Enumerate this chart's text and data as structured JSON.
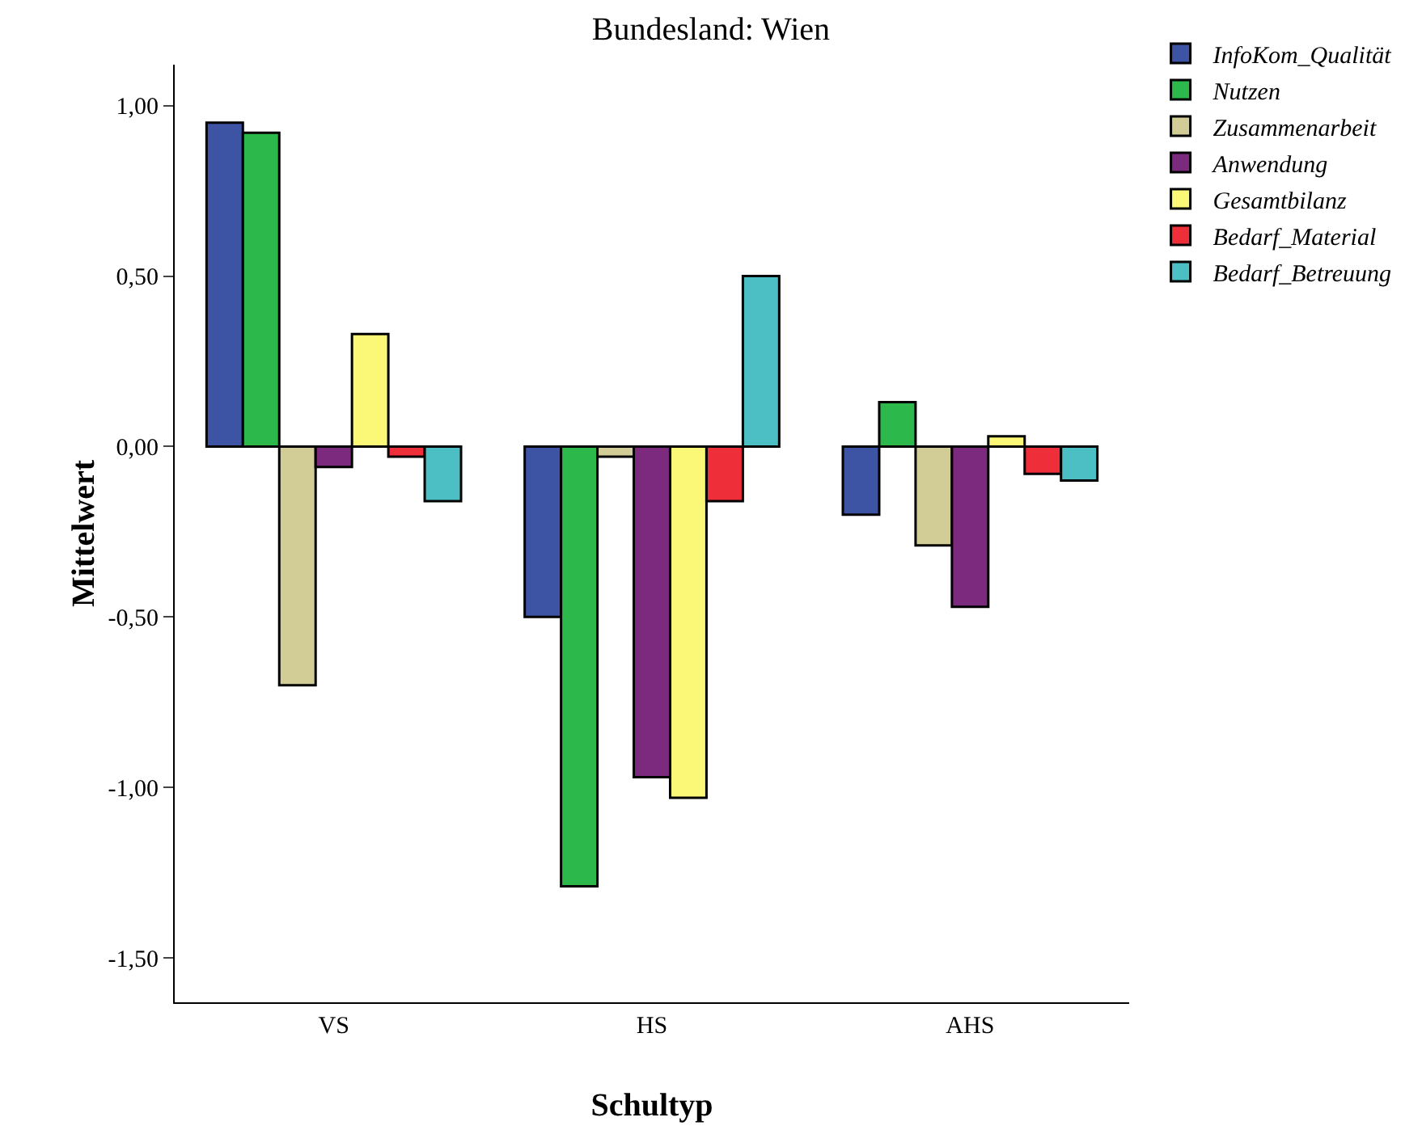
{
  "chart_data": {
    "type": "bar",
    "title": "Bundesland: Wien",
    "xlabel": "Schultyp",
    "ylabel": "Mittelwert",
    "categories": [
      "VS",
      "HS",
      "AHS"
    ],
    "series": [
      {
        "name": "InfoKom_Qualität",
        "color": "#3d53a4",
        "values": [
          0.95,
          -0.5,
          -0.2
        ]
      },
      {
        "name": "Nutzen",
        "color": "#2db84b",
        "values": [
          0.92,
          -1.29,
          0.13
        ]
      },
      {
        "name": "Zusammenarbeit",
        "color": "#d2cc96",
        "values": [
          -0.7,
          -0.03,
          -0.29
        ]
      },
      {
        "name": "Anwendung",
        "color": "#7b2a7e",
        "values": [
          -0.06,
          -0.97,
          -0.47
        ]
      },
      {
        "name": "Gesamtbilanz",
        "color": "#fbf877",
        "values": [
          0.33,
          -1.03,
          0.03
        ]
      },
      {
        "name": "Bedarf_Material",
        "color": "#ee2f3a",
        "values": [
          -0.03,
          -0.16,
          -0.08
        ]
      },
      {
        "name": "Bedarf_Betreuung",
        "color": "#4bbfc4",
        "values": [
          -0.16,
          0.5,
          -0.1
        ]
      }
    ],
    "ylim": [
      -1.63,
      1.12
    ],
    "yticks": [
      {
        "value": -1.5,
        "label": "-1,50"
      },
      {
        "value": -1,
        "label": "-1,00"
      },
      {
        "value": -0.5,
        "label": "-0,50"
      },
      {
        "value": 0,
        "label": "0,00"
      },
      {
        "value": 0.5,
        "label": "0,50"
      },
      {
        "value": 1,
        "label": "1,00"
      }
    ],
    "grid": false,
    "legend": "top right"
  }
}
